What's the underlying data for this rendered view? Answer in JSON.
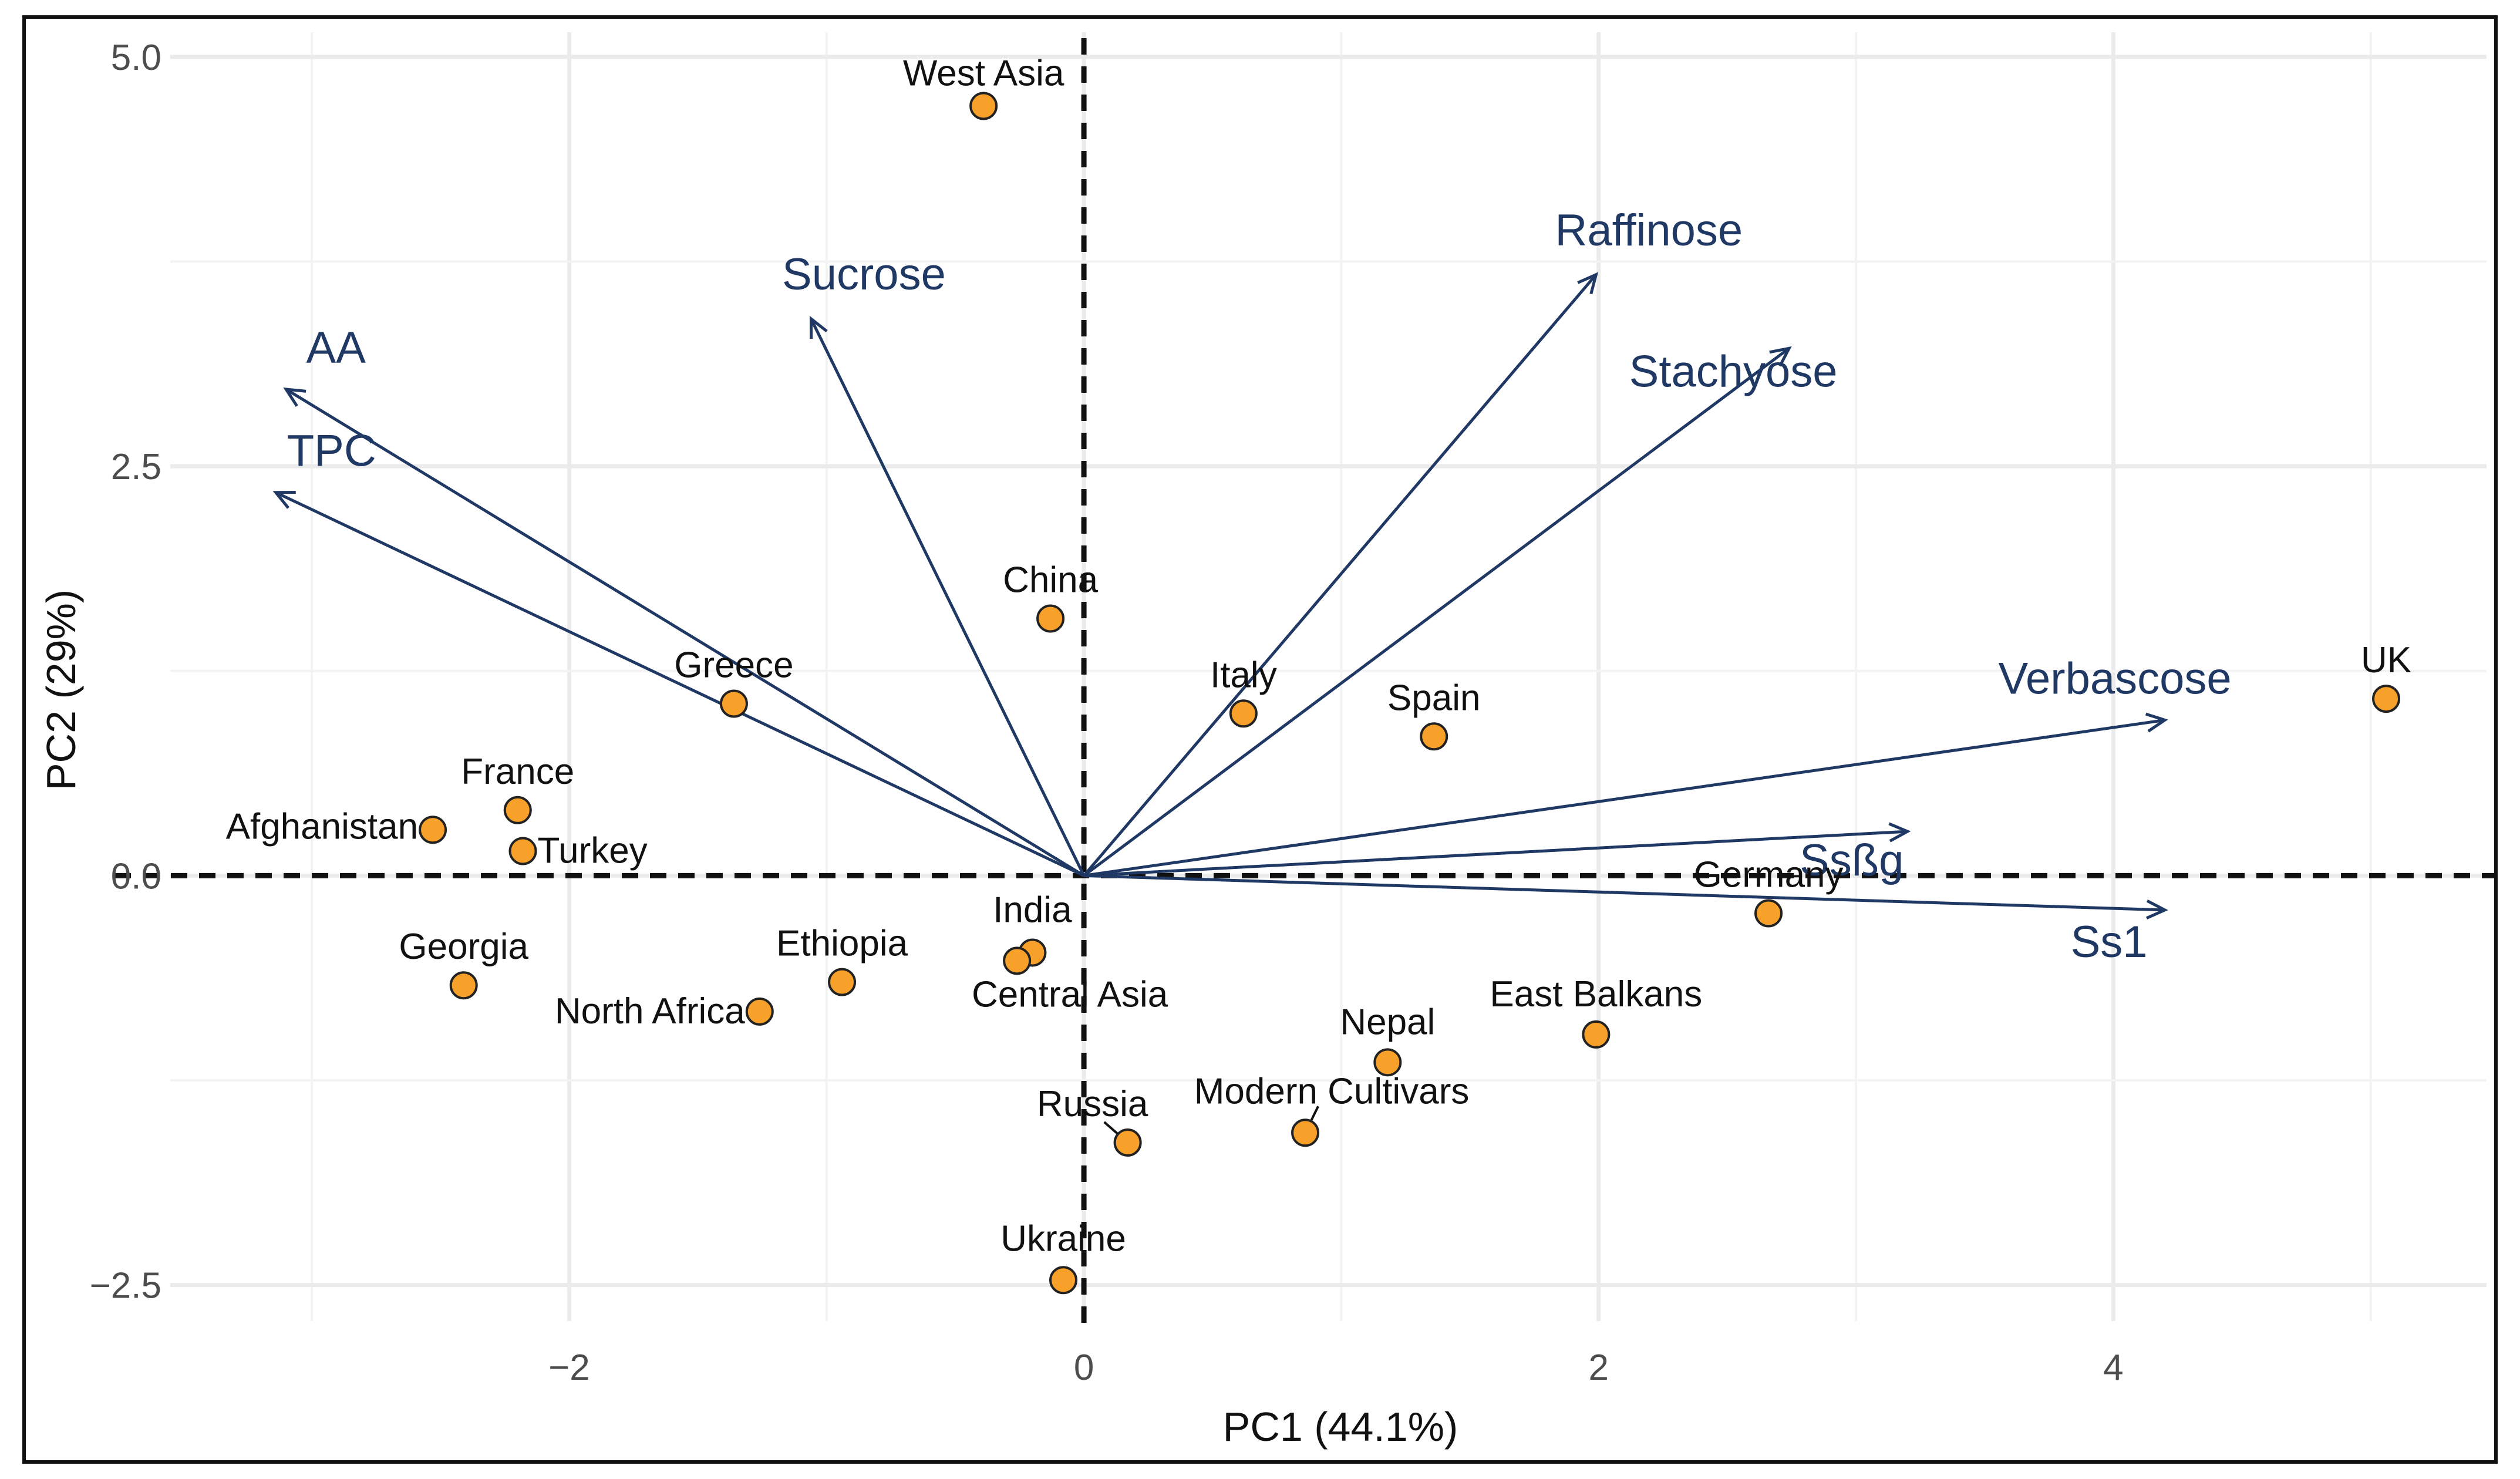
{
  "chart_data": {
    "type": "scatter",
    "subtype": "pca-biplot",
    "xlabel": "PC1 (44.1%)",
    "ylabel": "PC2 (29%)",
    "xlim": [
      -3.55,
      5.45
    ],
    "ylim": [
      -2.72,
      5.15
    ],
    "x_ticks": [
      -2,
      0,
      2,
      4
    ],
    "x_tick_labels": [
      "−2",
      "0",
      "2",
      "4"
    ],
    "y_ticks": [
      -2.5,
      0,
      2.5,
      5
    ],
    "y_tick_labels": [
      "−2.5",
      "0.0",
      "2.5",
      "5.0"
    ],
    "point_color": "#f7a12a",
    "point_stroke": "#222222",
    "vector_color": "#1f3864",
    "points": [
      {
        "label": "West Asia",
        "x": -0.39,
        "y": 4.7
      },
      {
        "label": "China",
        "x": -0.13,
        "y": 1.57
      },
      {
        "label": "Greece",
        "x": -1.36,
        "y": 1.05
      },
      {
        "label": "France",
        "x": -2.2,
        "y": 0.4
      },
      {
        "label": "Afghanistan",
        "x": -2.53,
        "y": 0.28
      },
      {
        "label": "Turkey",
        "x": -2.18,
        "y": 0.15
      },
      {
        "label": "Italy",
        "x": 0.62,
        "y": 0.99
      },
      {
        "label": "Spain",
        "x": 1.36,
        "y": 0.85
      },
      {
        "label": "UK",
        "x": 5.06,
        "y": 1.08
      },
      {
        "label": "Germany",
        "x": 2.66,
        "y": -0.23
      },
      {
        "label": "Georgia",
        "x": -2.41,
        "y": -0.67
      },
      {
        "label": "Ethiopia",
        "x": -0.94,
        "y": -0.65
      },
      {
        "label": "North Africa",
        "x": -1.26,
        "y": -0.83
      },
      {
        "label": "India",
        "x": -0.2,
        "y": -0.47
      },
      {
        "label": "Central Asia",
        "x": -0.26,
        "y": -0.52
      },
      {
        "label": "Nepal",
        "x": 1.18,
        "y": -1.14
      },
      {
        "label": "East Balkans",
        "x": 1.99,
        "y": -0.97
      },
      {
        "label": "Modern Cultivars",
        "x": 0.86,
        "y": -1.57
      },
      {
        "label": "Russia",
        "x": 0.17,
        "y": -1.63
      },
      {
        "label": "Ukraine",
        "x": -0.08,
        "y": -2.47
      }
    ],
    "vectors": [
      {
        "label": "AA",
        "x": -3.1,
        "y": 2.97
      },
      {
        "label": "TPC",
        "x": -3.14,
        "y": 2.34
      },
      {
        "label": "Sucrose",
        "x": -1.06,
        "y": 3.4
      },
      {
        "label": "Raffinose",
        "x": 1.99,
        "y": 3.67
      },
      {
        "label": "Stachyose",
        "x": 2.74,
        "y": 3.22
      },
      {
        "label": "Verbascose",
        "x": 4.2,
        "y": 0.95
      },
      {
        "label": "Ssßg",
        "x": 3.2,
        "y": 0.27
      },
      {
        "label": "Ss1",
        "x": 4.2,
        "y": -0.21
      }
    ]
  }
}
